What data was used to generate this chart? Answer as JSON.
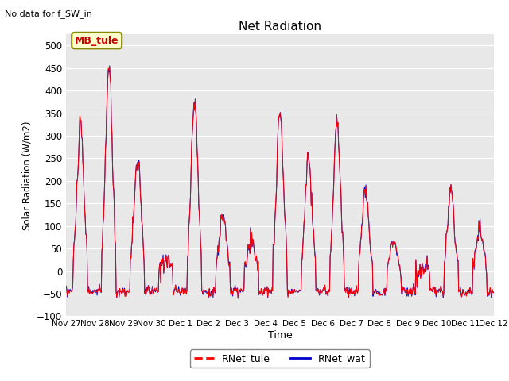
{
  "title": "Net Radiation",
  "subtitle": "No data for f_SW_in",
  "ylabel": "Solar Radiation (W/m2)",
  "xlabel": "Time",
  "ylim": [
    -100,
    525
  ],
  "yticks": [
    -100,
    -50,
    0,
    50,
    100,
    150,
    200,
    250,
    300,
    350,
    400,
    450,
    500
  ],
  "bg_color": "#e8e8e8",
  "line_color_tule": "#ff0000",
  "line_color_wat": "#0000cc",
  "legend_label_tule": "RNet_tule",
  "legend_label_wat": "RNet_wat",
  "annotation_text": "MB_tule",
  "annotation_color": "#cc0000",
  "annotation_bg": "#ffffcc",
  "annotation_edge": "#888800",
  "xtick_labels": [
    "Nov 27",
    "Nov 28",
    "Nov 29",
    "Nov 30",
    "Dec 1",
    "Dec 2",
    "Dec 3",
    "Dec 4",
    "Dec 5",
    "Dec 6",
    "Dec 7",
    "Dec 8",
    "Dec 9",
    "Dec 10",
    "Dec 11",
    "Dec 12"
  ],
  "day_peaks_tule": [
    320,
    450,
    245,
    30,
    375,
    125,
    65,
    350,
    255,
    330,
    175,
    65,
    0,
    175,
    90,
    0
  ],
  "n_days": 15,
  "pts_per_day": 48
}
